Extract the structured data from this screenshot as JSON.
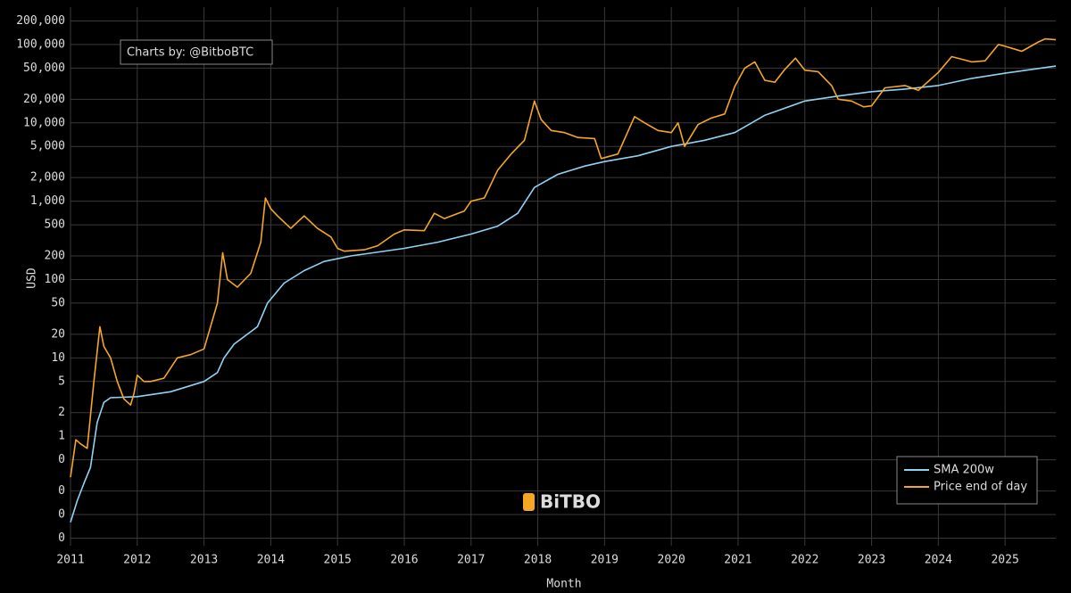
{
  "chart_data": {
    "type": "line",
    "annotation": "Charts by: @BitboBTC",
    "logo_text": "BiTBO",
    "xlabel": "Month",
    "ylabel": "USD",
    "log_y": true,
    "grid": true,
    "legend": "lower right",
    "xlim": [
      2011,
      2025.76
    ],
    "xticks": [
      2011,
      2012,
      2013,
      2014,
      2015,
      2016,
      2017,
      2018,
      2019,
      2020,
      2021,
      2022,
      2023,
      2024,
      2025
    ],
    "ylim": [
      0.04,
      300000
    ],
    "yticks": [
      {
        "value": 0.05,
        "label": "0"
      },
      {
        "value": 0.1,
        "label": "0"
      },
      {
        "value": 0.2,
        "label": "0"
      },
      {
        "value": 0.5,
        "label": "0"
      },
      1,
      2,
      5,
      10,
      20,
      50,
      100,
      200,
      500,
      {
        "value": 1000,
        "label": "1,000"
      },
      {
        "value": 2000,
        "label": "2,000"
      },
      {
        "value": 5000,
        "label": "5,000"
      },
      {
        "value": 10000,
        "label": "10,000"
      },
      {
        "value": 20000,
        "label": "20,000"
      },
      {
        "value": 50000,
        "label": "50,000"
      },
      {
        "value": 100000,
        "label": "100,000"
      },
      {
        "value": 200000,
        "label": "200,000"
      }
    ],
    "series": [
      {
        "name": "SMA 200w",
        "color": "#8fd3f4",
        "x": [
          2011.0,
          2011.1,
          2011.2,
          2011.3,
          2011.4,
          2011.5,
          2011.6,
          2012.0,
          2012.5,
          2013.0,
          2013.2,
          2013.3,
          2013.45,
          2013.8,
          2013.95,
          2014.2,
          2014.5,
          2014.8,
          2015.2,
          2016.0,
          2016.5,
          2017.0,
          2017.4,
          2017.7,
          2017.95,
          2018.3,
          2018.7,
          2019.0,
          2019.5,
          2020.0,
          2020.5,
          2020.95,
          2021.4,
          2022.0,
          2022.5,
          2023.0,
          2023.5,
          2024.0,
          2024.5,
          2025.0,
          2025.76
        ],
        "values": [
          0.08,
          0.15,
          0.25,
          0.4,
          1.5,
          2.7,
          3.1,
          3.2,
          3.7,
          5,
          6.5,
          10,
          15,
          25,
          50,
          90,
          130,
          170,
          200,
          250,
          300,
          380,
          480,
          700,
          1500,
          2200,
          2800,
          3200,
          3800,
          5000,
          6000,
          7500,
          12500,
          19000,
          22000,
          25000,
          27000,
          30000,
          37000,
          43000,
          53000
        ]
      },
      {
        "name": "Price end of day",
        "color": "#f5a623",
        "x": [
          2011.0,
          2011.08,
          2011.15,
          2011.25,
          2011.35,
          2011.44,
          2011.5,
          2011.6,
          2011.7,
          2011.8,
          2011.9,
          2011.95,
          2012.0,
          2012.1,
          2012.2,
          2012.4,
          2012.6,
          2012.8,
          2013.0,
          2013.2,
          2013.28,
          2013.35,
          2013.5,
          2013.7,
          2013.85,
          2013.92,
          2014.0,
          2014.1,
          2014.3,
          2014.5,
          2014.7,
          2014.9,
          2015.0,
          2015.1,
          2015.4,
          2015.6,
          2015.85,
          2016.0,
          2016.3,
          2016.45,
          2016.6,
          2016.9,
          2017.0,
          2017.2,
          2017.4,
          2017.6,
          2017.8,
          2017.95,
          2018.05,
          2018.2,
          2018.4,
          2018.6,
          2018.85,
          2018.95,
          2019.2,
          2019.45,
          2019.6,
          2019.8,
          2020.0,
          2020.1,
          2020.2,
          2020.4,
          2020.6,
          2020.8,
          2020.95,
          2021.1,
          2021.25,
          2021.4,
          2021.55,
          2021.7,
          2021.86,
          2022.0,
          2022.2,
          2022.4,
          2022.5,
          2022.7,
          2022.88,
          2023.0,
          2023.2,
          2023.5,
          2023.7,
          2023.9,
          2024.0,
          2024.2,
          2024.5,
          2024.7,
          2024.9,
          2025.0,
          2025.25,
          2025.5,
          2025.6,
          2025.76
        ],
        "values": [
          0.3,
          0.9,
          0.8,
          0.7,
          5,
          25,
          14,
          10,
          5,
          3,
          2.5,
          3.5,
          6,
          5,
          5,
          5.5,
          10,
          11,
          13,
          50,
          220,
          100,
          80,
          120,
          300,
          1100,
          800,
          650,
          450,
          650,
          450,
          350,
          250,
          230,
          240,
          270,
          380,
          430,
          420,
          700,
          600,
          750,
          1000,
          1100,
          2500,
          4000,
          6000,
          19000,
          11000,
          8000,
          7500,
          6500,
          6300,
          3500,
          4000,
          12000,
          10000,
          8000,
          7500,
          10000,
          5000,
          9500,
          11500,
          13000,
          29000,
          50000,
          60000,
          35000,
          33000,
          48000,
          67000,
          47000,
          45000,
          30000,
          20000,
          19000,
          16000,
          16500,
          28000,
          30000,
          26000,
          37000,
          44000,
          70000,
          60000,
          62000,
          100000,
          95000,
          82000,
          108000,
          118000,
          115000
        ]
      }
    ]
  }
}
